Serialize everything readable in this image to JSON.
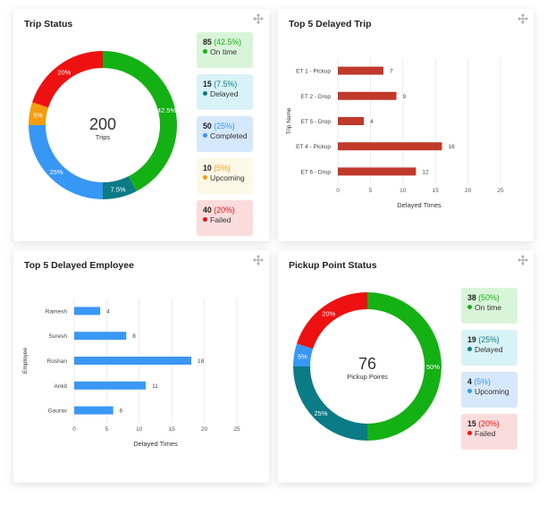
{
  "trip_status": {
    "title": "Trip Status",
    "total": "200",
    "total_label": "Trips",
    "segments": [
      {
        "label": "On time",
        "count": "85",
        "pct": "(42.5%)",
        "value": 42.5,
        "slice_label": "42.5%",
        "color": "#14b114",
        "bg": "#d9f5d9",
        "pct_color": "#14b114"
      },
      {
        "label": "Delayed",
        "count": "15",
        "pct": "(7.5%)",
        "value": 7.5,
        "slice_label": "7.5%",
        "color": "#0b7b86",
        "bg": "#d8f3f7",
        "pct_color": "#0b7b86"
      },
      {
        "label": "Completed",
        "count": "50",
        "pct": "(25%)",
        "value": 25,
        "slice_label": "25%",
        "color": "#3797f4",
        "bg": "#d6e8fb",
        "pct_color": "#3797f4"
      },
      {
        "label": "Upcoming",
        "count": "10",
        "pct": "(5%)",
        "value": 5,
        "slice_label": "5%",
        "color": "#f59d0d",
        "bg": "#fef8e7",
        "pct_color": "#f59d0d"
      },
      {
        "label": "Failed",
        "count": "40",
        "pct": "(20%)",
        "value": 20,
        "slice_label": "20%",
        "color": "#ee1111",
        "bg": "#fbdcdc",
        "pct_color": "#ee1111"
      }
    ]
  },
  "top5_trip": {
    "title": "Top 5 Delayed Trip",
    "chart_data": {
      "type": "bar",
      "orientation": "horizontal",
      "categories": [
        "ET 1 - Pickup",
        "ET 2 - Drop",
        "ET 5 - Drop",
        "ET 4 - Pickup",
        "ET 6 - Drop"
      ],
      "values": [
        7,
        9,
        4,
        16,
        12
      ],
      "xlabel": "Delayed Times",
      "ylabel": "Trip Name",
      "xlim": [
        0,
        25
      ],
      "xticks": [
        "0",
        "5",
        "10",
        "15",
        "20",
        "25"
      ],
      "color": "#c0392b",
      "grid": true
    }
  },
  "top5_employee": {
    "title": "Top 5 Delayed Employee",
    "chart_data": {
      "type": "bar",
      "orientation": "horizontal",
      "categories": [
        "Ramesh",
        "Suresh",
        "Roshan",
        "Ankit",
        "Gaurav"
      ],
      "values": [
        4,
        8,
        18,
        11,
        6
      ],
      "xlabel": "Delayed Times",
      "ylabel": "Employee",
      "xlim": [
        0,
        25
      ],
      "xticks": [
        "0",
        "5",
        "10",
        "15",
        "20",
        "25"
      ],
      "color": "#3a97f4",
      "grid": true
    }
  },
  "pickup_status": {
    "title": "Pickup Point Status",
    "total": "76",
    "total_label": "Pickup Points",
    "segments": [
      {
        "label": "On time",
        "count": "38",
        "pct": "(50%)",
        "value": 50,
        "slice_label": "50%",
        "color": "#14b114",
        "bg": "#d9f5d9",
        "pct_color": "#14b114"
      },
      {
        "label": "Delayed",
        "count": "19",
        "pct": "(25%)",
        "value": 25,
        "slice_label": "25%",
        "color": "#0b7b86",
        "bg": "#d8f3f7",
        "pct_color": "#0b7b86"
      },
      {
        "label": "Upcoming",
        "count": "4",
        "pct": "(5%)",
        "value": 5,
        "slice_label": "5%",
        "color": "#3797f4",
        "bg": "#d6e8fb",
        "pct_color": "#3797f4"
      },
      {
        "label": "Failed",
        "count": "15",
        "pct": "(20%)",
        "value": 20,
        "slice_label": "20%",
        "color": "#ee1111",
        "bg": "#fbdcdc",
        "pct_color": "#ee1111"
      }
    ]
  }
}
